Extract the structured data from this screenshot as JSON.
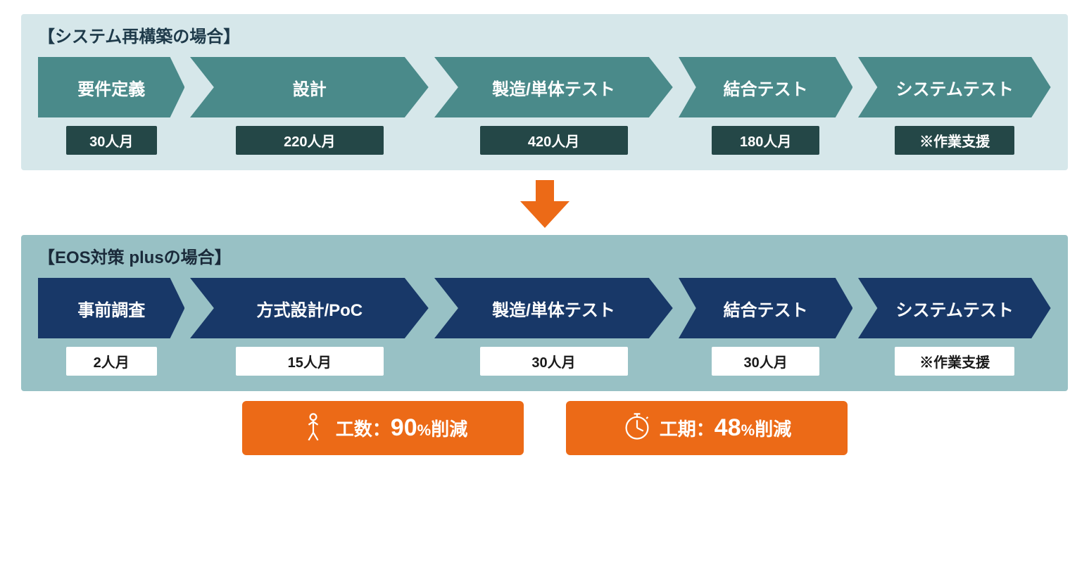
{
  "panels": [
    {
      "title": "【システム再構築の場合】",
      "bg_color": "#d6e7ea",
      "title_color": "#1e3a4a",
      "chevron_color": "#4a8a8a",
      "value_bg": "#244747",
      "value_color": "#ffffff",
      "steps": [
        {
          "label": "要件定義",
          "value": "30人月",
          "width": 0.8
        },
        {
          "label": "設計",
          "value": "220人月",
          "width": 1.3
        },
        {
          "label": "製造/単体テスト",
          "value": "420人月",
          "width": 1.3
        },
        {
          "label": "結合テスト",
          "value": "180人月",
          "width": 0.95
        },
        {
          "label": "システムテスト",
          "value": "※作業支援",
          "width": 1.05
        }
      ]
    },
    {
      "title": "【EOS対策 plusの場合】",
      "bg_color": "#98c1c5",
      "title_color": "#1a2a3a",
      "chevron_color": "#183868",
      "value_bg": "#ffffff",
      "value_color": "#1a1a1a",
      "steps": [
        {
          "label": "事前調査",
          "value": "2人月",
          "width": 0.8
        },
        {
          "label": "方式設計/PoC",
          "value": "15人月",
          "width": 1.3
        },
        {
          "label": "製造/単体テスト",
          "value": "30人月",
          "width": 1.3
        },
        {
          "label": "結合テスト",
          "value": "30人月",
          "width": 0.95
        },
        {
          "label": "システムテスト",
          "value": "※作業支援",
          "width": 1.05
        }
      ]
    }
  ],
  "down_arrow_color": "#ec6a17",
  "summaries": [
    {
      "icon": "person",
      "prefix": "工数：",
      "big": "90",
      "pct": "%",
      "suffix": "削減",
      "bg": "#ec6a17"
    },
    {
      "icon": "stopwatch",
      "prefix": "工期：",
      "big": "48",
      "pct": "%",
      "suffix": "削減",
      "bg": "#ec6a17"
    }
  ]
}
